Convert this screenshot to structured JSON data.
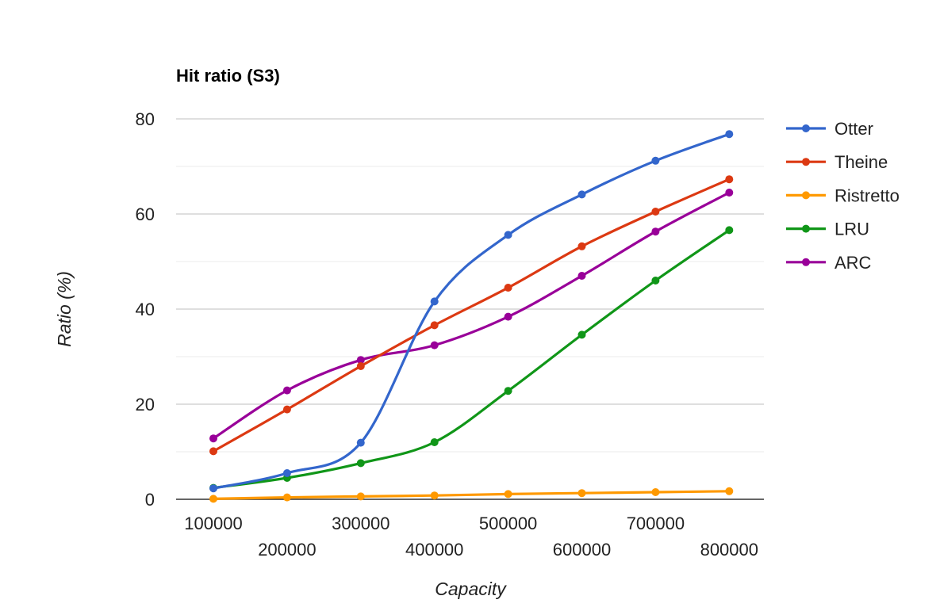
{
  "chart_data": {
    "type": "line",
    "title": "Hit ratio (S3)",
    "xlabel": "Capacity",
    "ylabel": "Ratio (%)",
    "x": [
      100000,
      200000,
      300000,
      400000,
      500000,
      600000,
      700000,
      800000
    ],
    "x_tick_labels": [
      "100000",
      "200000",
      "300000",
      "400000",
      "500000",
      "600000",
      "700000",
      "800000"
    ],
    "y_ticks": [
      0,
      20,
      40,
      60,
      80
    ],
    "y_tick_labels": [
      "0",
      "20",
      "40",
      "60",
      "80"
    ],
    "ylim": [
      0,
      80
    ],
    "grid": true,
    "legend_position": "right",
    "series": [
      {
        "name": "Otter",
        "color": "#3366cc",
        "values": [
          2.3,
          5.5,
          11.9,
          41.6,
          55.6,
          64.1,
          71.2,
          76.8
        ]
      },
      {
        "name": "Theine",
        "color": "#dc3912",
        "values": [
          10.1,
          18.9,
          28.0,
          36.6,
          44.5,
          53.2,
          60.5,
          67.3
        ]
      },
      {
        "name": "Ristretto",
        "color": "#ff9900",
        "values": [
          0.1,
          0.4,
          0.6,
          0.8,
          1.1,
          1.3,
          1.5,
          1.7
        ]
      },
      {
        "name": "LRU",
        "color": "#109618",
        "values": [
          2.4,
          4.5,
          7.6,
          12.0,
          22.8,
          34.6,
          46.0,
          56.6
        ]
      },
      {
        "name": "ARC",
        "color": "#990099",
        "values": [
          12.8,
          22.9,
          29.3,
          32.4,
          38.4,
          47.0,
          56.3,
          64.5
        ]
      }
    ]
  }
}
